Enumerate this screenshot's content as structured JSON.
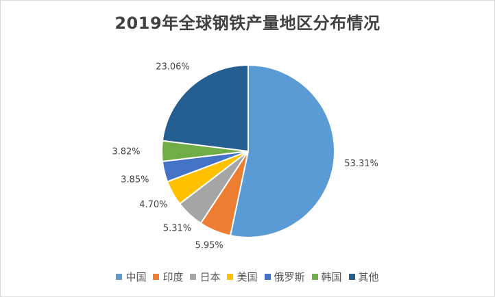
{
  "chart_data": {
    "type": "pie",
    "title": "2019年全球钢铁产量地区分布情况",
    "categories": [
      "中国",
      "印度",
      "日本",
      "美国",
      "俄罗斯",
      "韩国",
      "其他"
    ],
    "values": [
      53.31,
      5.95,
      5.31,
      4.7,
      3.85,
      3.82,
      23.06
    ],
    "value_labels": [
      "53.31%",
      "5.95%",
      "5.31%",
      "4.70%",
      "3.85%",
      "3.82%",
      "23.06%"
    ],
    "colors": [
      "#5b9bd5",
      "#ed7d31",
      "#a5a5a5",
      "#ffc000",
      "#4472c4",
      "#70ad47",
      "#255e91"
    ],
    "legend_position": "bottom",
    "start_angle": "12 o'clock, clockwise"
  }
}
